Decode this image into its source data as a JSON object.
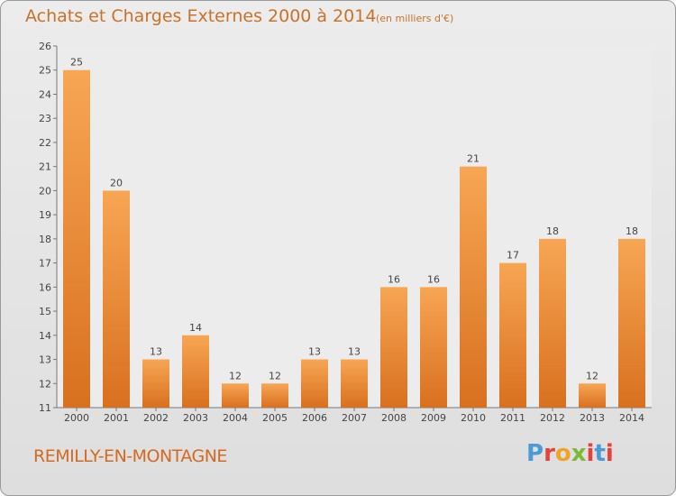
{
  "header": {
    "title": "Achats et Charges Externes 2000 à 2014",
    "subtitle": "(en milliers d'€)"
  },
  "footer": {
    "commune": "REMILLY-EN-MONTAGNE",
    "logo": "Proxiti"
  },
  "colors": {
    "title": "#c9722a",
    "bar_top": "#f7a654",
    "bar_bottom": "#d8701f",
    "logo": [
      "#4a9bd6",
      "#e7413b",
      "#f0a327",
      "#7cb93a",
      "#e7413b",
      "#4a9bd6",
      "#e7413b"
    ]
  },
  "chart_data": {
    "type": "bar",
    "title": "Achats et Charges Externes 2000 à 2014",
    "subtitle": "(en milliers d'€)",
    "categories": [
      "2000",
      "2001",
      "2002",
      "2003",
      "2004",
      "2005",
      "2006",
      "2007",
      "2008",
      "2009",
      "2010",
      "2011",
      "2012",
      "2013",
      "2014"
    ],
    "values": [
      25,
      20,
      13,
      14,
      12,
      12,
      13,
      13,
      16,
      16,
      21,
      17,
      18,
      12,
      18
    ],
    "value_labels": [
      "25",
      "20",
      "13",
      "14",
      "12",
      "12",
      "13",
      "13",
      "16",
      "16",
      "21",
      "17",
      "18",
      "12",
      "18"
    ],
    "y_ticks": [
      "11",
      "12",
      "13",
      "14",
      "15",
      "16",
      "17",
      "18",
      "19",
      "20",
      "21",
      "22",
      "23",
      "24",
      "25",
      "26"
    ],
    "ylim": [
      11,
      26
    ],
    "xlabel": "",
    "ylabel": "",
    "grid": false,
    "legend": "none"
  }
}
